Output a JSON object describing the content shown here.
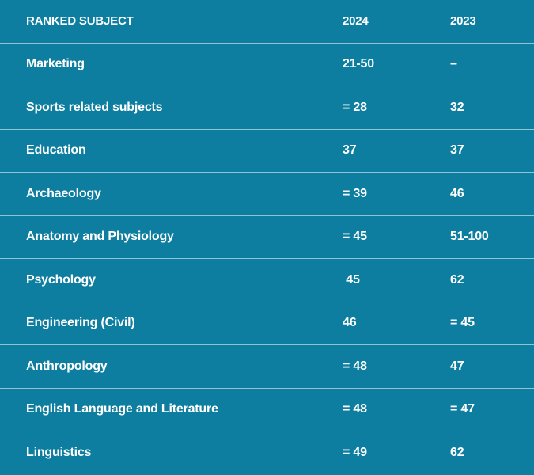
{
  "header": {
    "subject": "RANKED SUBJECT",
    "year1": "2024",
    "year2": "2023"
  },
  "rows": [
    {
      "subject": "Marketing",
      "y2024": "21-50",
      "y2023": "–"
    },
    {
      "subject": "Sports related subjects",
      "y2024": "= 28",
      "y2023": "32"
    },
    {
      "subject": "Education",
      "y2024": "37",
      "y2023": "37"
    },
    {
      "subject": "Archaeology",
      "y2024": "= 39",
      "y2023": "46"
    },
    {
      "subject": "Anatomy and Physiology",
      "y2024": "= 45",
      "y2023": "51-100"
    },
    {
      "subject": "Psychology",
      "y2024": " 45",
      "y2023": "62"
    },
    {
      "subject": "Engineering (Civil)",
      "y2024": "46",
      "y2023": "= 45"
    },
    {
      "subject": "Anthropology",
      "y2024": "= 48",
      "y2023": "47"
    },
    {
      "subject": "English Language and Literature",
      "y2024": "= 48",
      "y2023": "= 47"
    },
    {
      "subject": "Linguistics",
      "y2024": "= 49",
      "y2023": "62"
    }
  ],
  "colors": {
    "background": "#0d7ea0",
    "text": "#ffffff",
    "divider": "#9fd0df"
  }
}
